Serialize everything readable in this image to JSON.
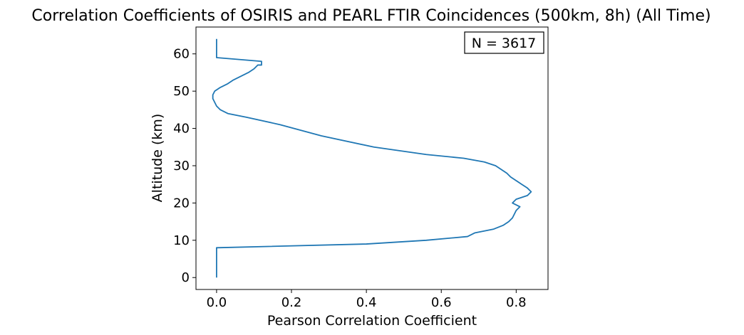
{
  "chart_data": {
    "type": "line",
    "title": "Correlation Coefficients of OSIRIS and PEARL FTIR Coincidences (500km, 8h) (All Time)",
    "xlabel": "Pearson Correlation Coefficient",
    "ylabel": "Altitude (km)",
    "xlim": [
      -0.055,
      0.885
    ],
    "ylim": [
      -3.2,
      67.2
    ],
    "xticks": [
      0.0,
      0.2,
      0.4,
      0.6,
      0.8
    ],
    "xtick_labels": [
      "0.0",
      "0.2",
      "0.4",
      "0.6",
      "0.8"
    ],
    "yticks": [
      0,
      10,
      20,
      30,
      40,
      50,
      60
    ],
    "ytick_labels": [
      "0",
      "10",
      "20",
      "30",
      "40",
      "50",
      "60"
    ],
    "grid": false,
    "line_color": "#1f77b4",
    "annotation": "N = 3617",
    "annotation_position": "top-right",
    "series": [
      {
        "x": [
          0.0,
          0.0,
          0.0,
          0.0,
          0.0,
          0.0,
          0.0,
          0.0,
          0.0,
          0.4,
          0.56,
          0.67,
          0.69,
          0.74,
          0.765,
          0.78,
          0.79,
          0.795,
          0.8,
          0.81,
          0.79,
          0.8,
          0.83,
          0.84,
          0.83,
          0.815,
          0.8,
          0.785,
          0.775,
          0.76,
          0.745,
          0.715,
          0.66,
          0.56,
          0.42,
          0.28,
          0.17,
          0.08,
          0.03,
          0.01,
          0.0,
          -0.005,
          -0.01,
          -0.01,
          -0.005,
          0.01,
          0.03,
          0.045,
          0.065,
          0.085,
          0.1,
          0.11,
          0.12,
          0.12,
          0.0,
          0.0,
          0.0,
          0.0,
          0.0,
          0.0,
          0.0
        ],
        "y": [
          0,
          1,
          2,
          3,
          4,
          5,
          6,
          7,
          8,
          9,
          10,
          11,
          12,
          13,
          14,
          15,
          16,
          17,
          18,
          19,
          20,
          21,
          22,
          23,
          24,
          25,
          26,
          27,
          28,
          29,
          30,
          31,
          32,
          33,
          35,
          38,
          41,
          43,
          44,
          45,
          46,
          47,
          48,
          49,
          50,
          51,
          52,
          53,
          54,
          55,
          56,
          57,
          57,
          58,
          59,
          60,
          61,
          62,
          63,
          64,
          64
        ]
      }
    ]
  }
}
